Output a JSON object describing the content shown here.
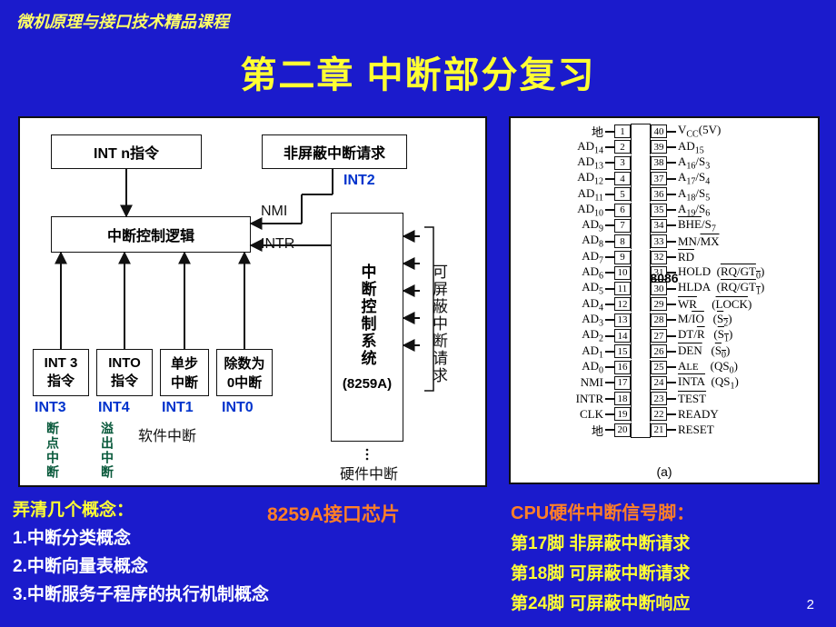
{
  "course_header": "微机原理与接口技术精品课程",
  "chapter_title": "第二章 中断部分复习",
  "left": {
    "int_n": "INT  n指令",
    "nmr": "非屏蔽中断请求",
    "int2": "INT2",
    "logic": "中断控制逻辑",
    "nmi": "NMI",
    "intr": "INTR",
    "sys": "中断控制系统",
    "a8259": "(8259A)",
    "maskreq": "可屏蔽中断请求",
    "b_int3a": "INT 3",
    "b_int3b": "指令",
    "b_intoa": "INTO",
    "b_intob": "指令",
    "b_step1": "单步",
    "b_step2": "中断",
    "b_div1": "除数为",
    "b_div2": "0中断",
    "int3": "INT3",
    "int4": "INT4",
    "int1": "INT1",
    "int0": "INT0",
    "bp": "断点中断",
    "ov": "溢出中断",
    "sw": "软件中断",
    "hw": "硬件中断"
  },
  "bottom_mid": "8259A接口芯片",
  "concepts": {
    "header": "弄清几个概念：",
    "c1": "1.中断分类概念",
    "c2": "2.中断向量表概念",
    "c3": "3.中断服务子程序的执行机制概念"
  },
  "right_notes": {
    "header": "CPU硬件中断信号脚：",
    "l1": "第17脚  非屏蔽中断请求",
    "l2": "第18脚  可屏蔽中断请求",
    "l3": "第24脚 可屏蔽中断响应"
  },
  "chip": {
    "name": "8086",
    "caption": "(a)",
    "left_pins": [
      "地",
      "AD14",
      "AD13",
      "AD12",
      "AD11",
      "AD10",
      "AD9",
      "AD8",
      "AD7",
      "AD6",
      "AD5",
      "AD4",
      "AD3",
      "AD2",
      "AD1",
      "AD0",
      "NMI",
      "INTR",
      "CLK",
      "地"
    ],
    "left_nums": [
      1,
      2,
      3,
      4,
      5,
      6,
      7,
      8,
      9,
      10,
      11,
      12,
      13,
      14,
      15,
      16,
      17,
      18,
      19,
      20
    ],
    "right_nums": [
      40,
      39,
      38,
      37,
      36,
      35,
      34,
      33,
      32,
      31,
      30,
      29,
      28,
      27,
      26,
      25,
      24,
      23,
      22,
      21
    ],
    "right_pins": [
      "Vcc(5V)",
      "AD15",
      "A16/S3",
      "A17/S4",
      "A18/S5",
      "A19/S6",
      "BHE/S7",
      "MN/MX",
      "RD",
      "HOLD  (RQ/GT0)",
      "HLDA  (RQ/GT1)",
      "WR      (LOCK)",
      "M/IO    (S2)",
      "DT/R    (S1)",
      "DEN    (S0)",
      "ALE     (QS0)",
      "INTA   (QS1)",
      "TEST",
      "READY",
      "RESET"
    ],
    "right_over": {
      "6": "BHE",
      "7": "MX",
      "8": "RD",
      "9_p": "RQ/GT0",
      "10_p": "RQ/GT1",
      "11": "WR",
      "11_p": "LOCK",
      "12": "IO",
      "12_p": "S2",
      "13": "R",
      "13_p": "S1",
      "14": "DEN",
      "14_p": "S0",
      "16": "INTA",
      "17": "TEST"
    }
  },
  "page": "2"
}
